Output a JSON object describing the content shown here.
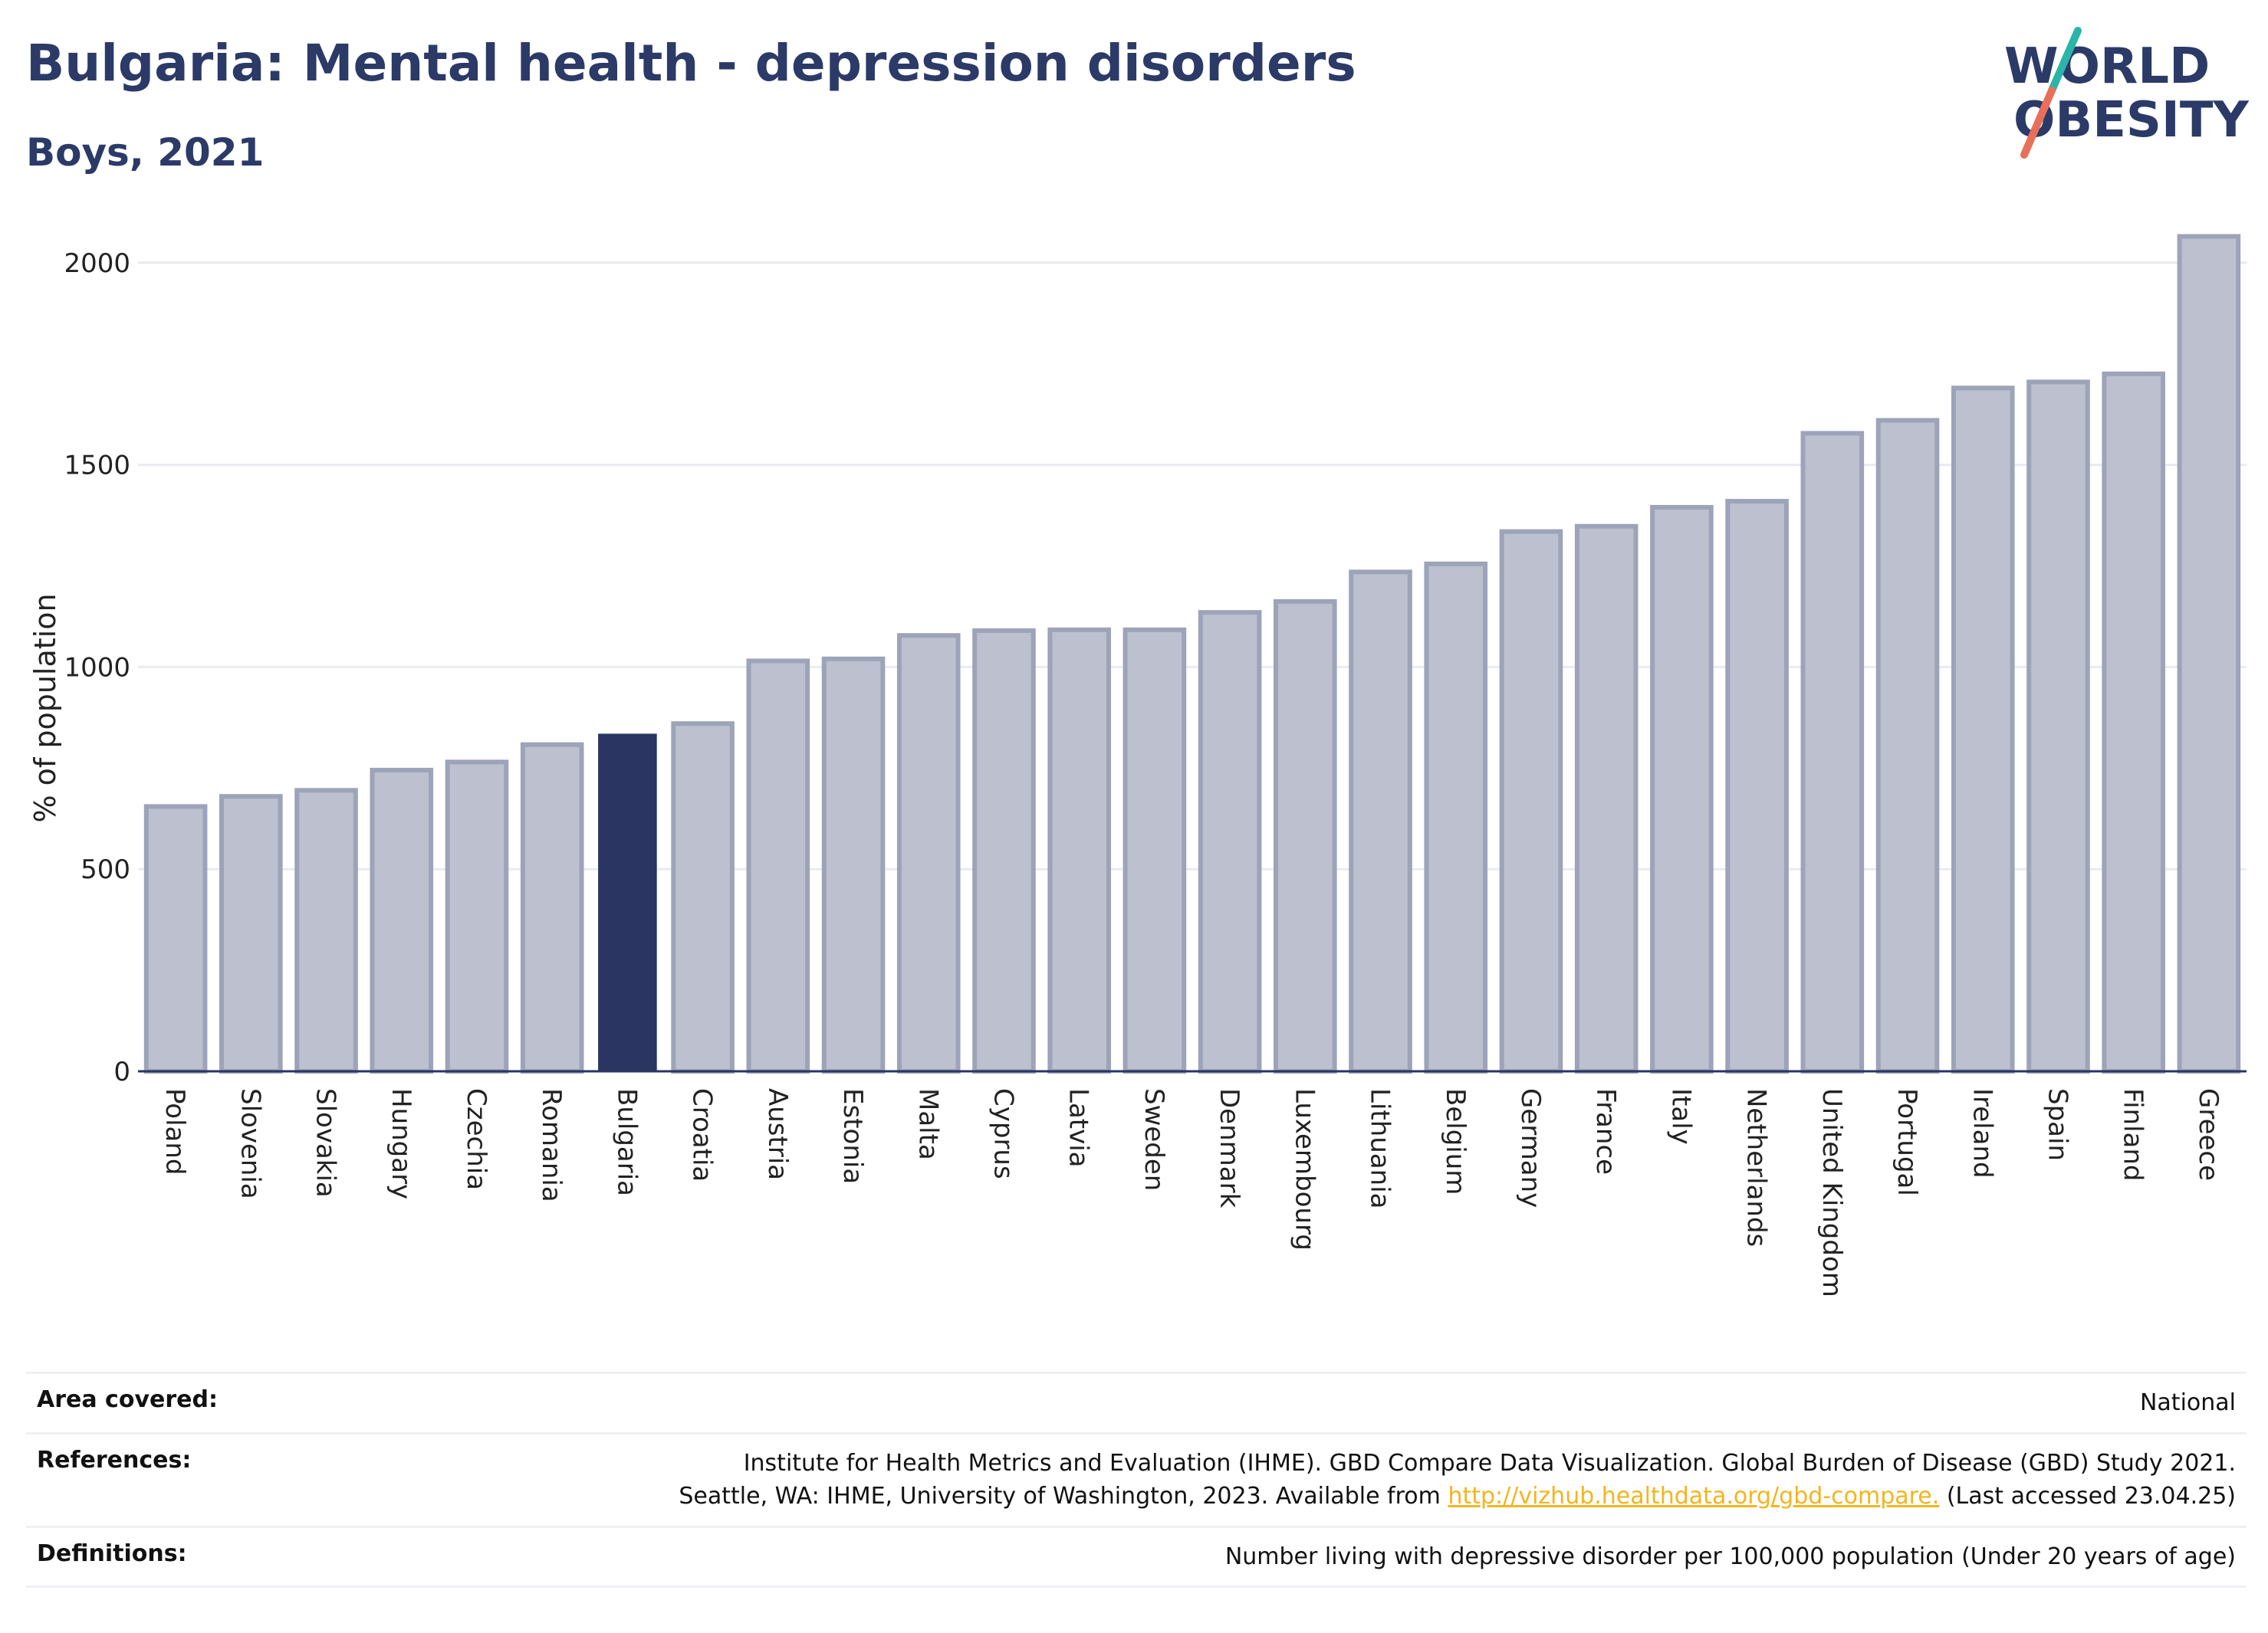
{
  "header": {
    "title": "Bulgaria: Mental health - depression disorders",
    "subtitle": "Boys, 2021"
  },
  "logo": {
    "line1": "WORLD",
    "line2": "OBESITY",
    "accent_teal": "#2bb5a8",
    "accent_red": "#e8705a",
    "color": "#2b3a67"
  },
  "chart_data": {
    "type": "bar",
    "title": "Bulgaria: Mental health - depression disorders",
    "subtitle": "Boys, 2021",
    "ylabel": "% of population",
    "xlabel": "",
    "ylim": [
      0,
      2100
    ],
    "yticks": [
      0,
      500,
      1000,
      1500,
      2000
    ],
    "grid": true,
    "highlight": "Bulgaria",
    "colors": {
      "bar": "#bcc0cf",
      "bar_edge": "#9da3b8",
      "highlight": "#2b3561"
    },
    "categories": [
      "Poland",
      "Slovenia",
      "Slovakia",
      "Hungary",
      "Czechia",
      "Romania",
      "Bulgaria",
      "Croatia",
      "Austria",
      "Estonia",
      "Malta",
      "Cyprus",
      "Latvia",
      "Sweden",
      "Denmark",
      "Luxembourg",
      "Lithuania",
      "Belgium",
      "Germany",
      "France",
      "Italy",
      "Netherlands",
      "United Kingdom",
      "Portugal",
      "Ireland",
      "Spain",
      "Finland",
      "Greece"
    ],
    "values": [
      655,
      680,
      695,
      745,
      765,
      808,
      835,
      860,
      1015,
      1020,
      1078,
      1090,
      1092,
      1092,
      1135,
      1162,
      1235,
      1255,
      1335,
      1348,
      1395,
      1410,
      1578,
      1610,
      1690,
      1705,
      1725,
      2065
    ]
  },
  "info": {
    "area_label": "Area covered:",
    "area_value": "National",
    "references_label": "References:",
    "references_line1": "Institute for Health Metrics and Evaluation (IHME). GBD Compare Data Visualization. Global Burden of Disease (GBD) Study 2021.",
    "references_line2_pre": "Seattle, WA: IHME, University of Washington, 2023. Available from",
    "references_link": "http://vizhub.healthdata.org/gbd-compare.",
    "references_line2_post": "(Last accessed 23.04.25)",
    "definitions_label": "Definitions:",
    "definitions_value": "Number living with depressive disorder per 100,000 population (Under 20 years of age)"
  }
}
